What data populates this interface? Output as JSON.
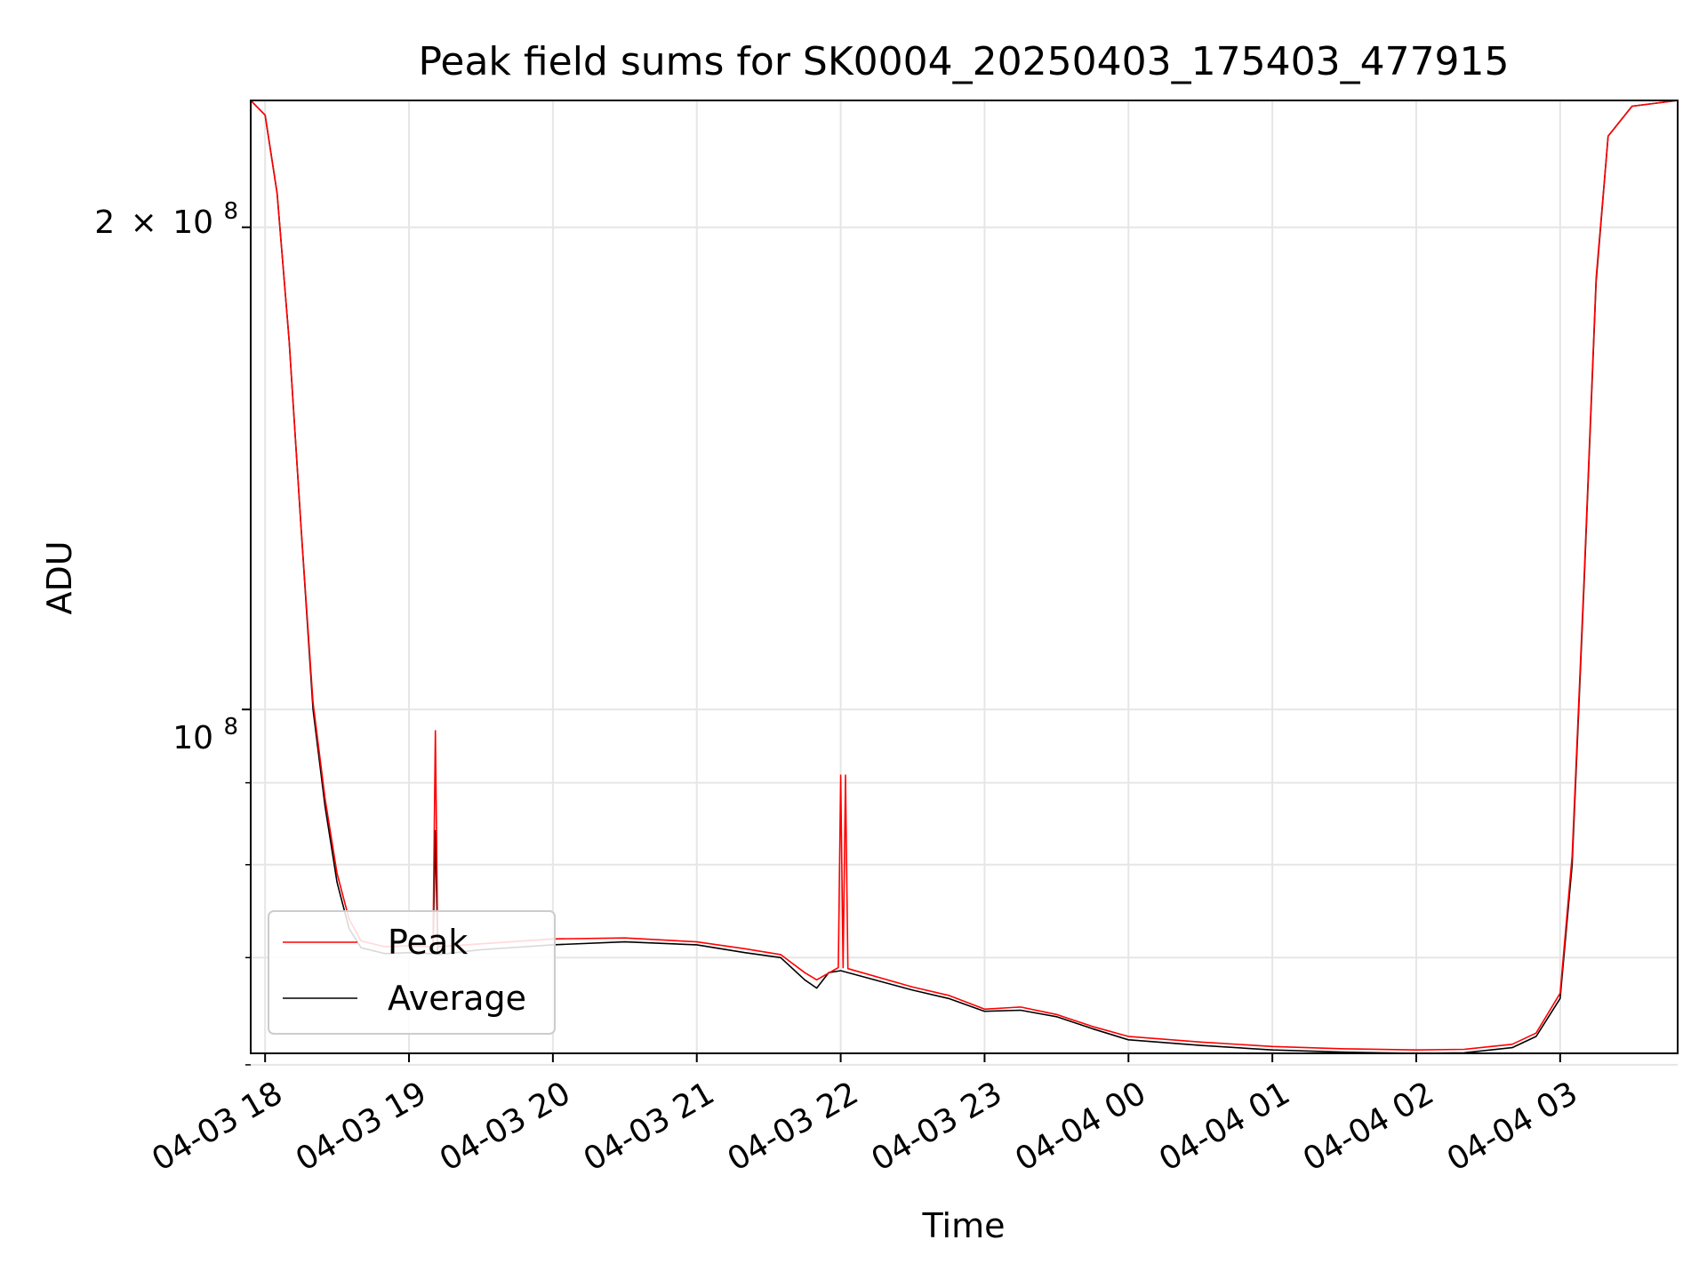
{
  "chart_data": {
    "type": "line",
    "title": "Peak field sums for SK0004_20250403_175403_477915",
    "xlabel": "Time",
    "ylabel": "ADU",
    "y_scale": "log",
    "ylim": [
      61000000,
      240000000
    ],
    "x_range": [
      "2025-04-03 17:54",
      "2025-04-04 03:49"
    ],
    "x_ticks": [
      "04-03 18",
      "04-03 19",
      "04-03 20",
      "04-03 21",
      "04-03 22",
      "04-03 23",
      "04-04 00",
      "04-04 01",
      "04-04 02",
      "04-04 03"
    ],
    "y_tick_labels": {
      "major_100M": {
        "base": "10",
        "exp": "8"
      },
      "major_200M": {
        "coef": "2",
        "times": "×",
        "base": "10",
        "exp": "8"
      }
    },
    "y_minor_ticks": [
      60000000,
      70000000,
      80000000,
      90000000
    ],
    "grid": true,
    "legend": {
      "position": "lower-left",
      "entries": [
        "Peak",
        "Average"
      ]
    },
    "colors": {
      "Peak": "#ff0000",
      "Average": "#000000"
    },
    "series": [
      {
        "name": "Average",
        "color": "#000000",
        "points": [
          [
            "2025-04-03 17:54",
            240000000
          ],
          [
            "2025-04-03 18:00",
            235000000
          ],
          [
            "2025-04-03 18:05",
            210000000
          ],
          [
            "2025-04-03 18:10",
            170000000
          ],
          [
            "2025-04-03 18:15",
            130000000
          ],
          [
            "2025-04-03 18:20",
            100000000
          ],
          [
            "2025-04-03 18:25",
            87000000
          ],
          [
            "2025-04-03 18:30",
            78000000
          ],
          [
            "2025-04-03 18:35",
            73000000
          ],
          [
            "2025-04-03 18:40",
            71000000
          ],
          [
            "2025-04-03 18:50",
            70400000
          ],
          [
            "2025-04-03 19:00",
            70500000
          ],
          [
            "2025-04-03 19:10",
            70400000
          ],
          [
            "2025-04-03 19:11",
            84000000
          ],
          [
            "2025-04-03 19:12",
            70300000
          ],
          [
            "2025-04-03 19:30",
            70800000
          ],
          [
            "2025-04-03 20:00",
            71300000
          ],
          [
            "2025-04-03 20:30",
            71600000
          ],
          [
            "2025-04-03 21:00",
            71300000
          ],
          [
            "2025-04-03 21:20",
            70500000
          ],
          [
            "2025-04-03 21:35",
            70000000
          ],
          [
            "2025-04-03 21:45",
            67800000
          ],
          [
            "2025-04-03 21:50",
            67000000
          ],
          [
            "2025-04-03 21:55",
            68500000
          ],
          [
            "2025-04-03 22:00",
            68700000
          ],
          [
            "2025-04-03 22:30",
            66800000
          ],
          [
            "2025-04-03 22:45",
            66000000
          ],
          [
            "2025-04-03 23:00",
            64800000
          ],
          [
            "2025-04-03 23:15",
            64900000
          ],
          [
            "2025-04-03 23:30",
            64300000
          ],
          [
            "2025-04-03 23:45",
            63200000
          ],
          [
            "2025-04-04 00:00",
            62200000
          ],
          [
            "2025-04-04 00:30",
            61700000
          ],
          [
            "2025-04-04 01:00",
            61300000
          ],
          [
            "2025-04-04 01:30",
            61100000
          ],
          [
            "2025-04-04 02:00",
            61000000
          ],
          [
            "2025-04-04 02:20",
            61050000
          ],
          [
            "2025-04-04 02:40",
            61500000
          ],
          [
            "2025-04-04 02:50",
            62500000
          ],
          [
            "2025-04-04 03:00",
            66000000
          ],
          [
            "2025-04-04 03:05",
            80000000
          ],
          [
            "2025-04-04 03:10",
            120000000
          ],
          [
            "2025-04-04 03:15",
            185000000
          ],
          [
            "2025-04-04 03:20",
            228000000
          ],
          [
            "2025-04-04 03:30",
            238000000
          ],
          [
            "2025-04-04 03:49",
            240000000
          ]
        ]
      },
      {
        "name": "Peak",
        "color": "#ff0000",
        "points": [
          [
            "2025-04-03 17:54",
            240000000
          ],
          [
            "2025-04-03 18:00",
            235000000
          ],
          [
            "2025-04-03 18:05",
            210000000
          ],
          [
            "2025-04-03 18:10",
            170000000
          ],
          [
            "2025-04-03 18:15",
            130000000
          ],
          [
            "2025-04-03 18:20",
            101000000
          ],
          [
            "2025-04-03 18:25",
            88000000
          ],
          [
            "2025-04-03 18:30",
            79000000
          ],
          [
            "2025-04-03 18:35",
            74000000
          ],
          [
            "2025-04-03 18:40",
            71700000
          ],
          [
            "2025-04-03 18:50",
            71100000
          ],
          [
            "2025-04-03 19:00",
            71200000
          ],
          [
            "2025-04-03 19:10",
            71100000
          ],
          [
            "2025-04-03 19:11",
            97000000
          ],
          [
            "2025-04-03 19:12",
            71100000
          ],
          [
            "2025-04-03 19:30",
            71400000
          ],
          [
            "2025-04-03 20:00",
            71900000
          ],
          [
            "2025-04-03 20:30",
            72000000
          ],
          [
            "2025-04-03 21:00",
            71600000
          ],
          [
            "2025-04-03 21:20",
            70900000
          ],
          [
            "2025-04-03 21:35",
            70300000
          ],
          [
            "2025-04-03 21:45",
            68500000
          ],
          [
            "2025-04-03 21:50",
            67800000
          ],
          [
            "2025-04-03 21:59",
            69000000
          ],
          [
            "2025-04-03 22:00",
            91000000
          ],
          [
            "2025-04-03 22:01",
            69000000
          ],
          [
            "2025-04-03 22:02",
            91000000
          ],
          [
            "2025-04-03 22:03",
            68900000
          ],
          [
            "2025-04-03 22:30",
            67100000
          ],
          [
            "2025-04-03 22:45",
            66300000
          ],
          [
            "2025-04-03 23:00",
            65000000
          ],
          [
            "2025-04-03 23:15",
            65200000
          ],
          [
            "2025-04-03 23:30",
            64500000
          ],
          [
            "2025-04-03 23:45",
            63400000
          ],
          [
            "2025-04-04 00:00",
            62500000
          ],
          [
            "2025-04-04 00:30",
            62000000
          ],
          [
            "2025-04-04 01:00",
            61600000
          ],
          [
            "2025-04-04 01:30",
            61400000
          ],
          [
            "2025-04-04 02:00",
            61300000
          ],
          [
            "2025-04-04 02:20",
            61350000
          ],
          [
            "2025-04-04 02:40",
            61800000
          ],
          [
            "2025-04-04 02:50",
            62800000
          ],
          [
            "2025-04-04 03:00",
            66500000
          ],
          [
            "2025-04-04 03:05",
            81000000
          ],
          [
            "2025-04-04 03:10",
            121000000
          ],
          [
            "2025-04-04 03:15",
            186000000
          ],
          [
            "2025-04-04 03:20",
            228000000
          ],
          [
            "2025-04-04 03:30",
            238000000
          ],
          [
            "2025-04-04 03:49",
            240000000
          ]
        ]
      }
    ]
  }
}
